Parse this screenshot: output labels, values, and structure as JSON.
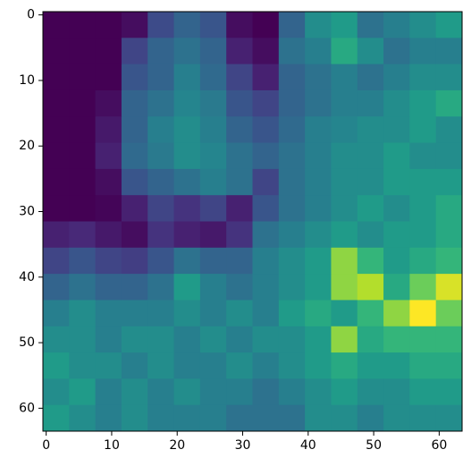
{
  "chart_data": {
    "type": "heatmap",
    "colormap": "viridis",
    "xlim": [
      -0.5,
      63.5
    ],
    "ylim": [
      63.5,
      -0.5
    ],
    "xticks": [
      0,
      10,
      20,
      30,
      40,
      50,
      60
    ],
    "yticks": [
      0,
      10,
      20,
      30,
      40,
      50,
      60
    ],
    "z": [
      [
        0.02,
        0.02,
        0.02,
        0.05,
        0.22,
        0.3,
        0.25,
        0.05,
        0.02,
        0.3,
        0.45,
        0.5,
        0.35,
        0.4,
        0.45,
        0.5
      ],
      [
        0.02,
        0.02,
        0.02,
        0.2,
        0.3,
        0.35,
        0.3,
        0.1,
        0.05,
        0.35,
        0.4,
        0.55,
        0.45,
        0.35,
        0.4,
        0.4
      ],
      [
        0.02,
        0.02,
        0.02,
        0.25,
        0.3,
        0.4,
        0.32,
        0.2,
        0.1,
        0.3,
        0.35,
        0.4,
        0.35,
        0.4,
        0.45,
        0.45
      ],
      [
        0.02,
        0.02,
        0.05,
        0.3,
        0.35,
        0.42,
        0.38,
        0.25,
        0.2,
        0.3,
        0.35,
        0.4,
        0.4,
        0.45,
        0.5,
        0.55
      ],
      [
        0.02,
        0.02,
        0.08,
        0.3,
        0.4,
        0.45,
        0.4,
        0.3,
        0.25,
        0.32,
        0.4,
        0.42,
        0.45,
        0.45,
        0.5,
        0.45
      ],
      [
        0.02,
        0.02,
        0.1,
        0.32,
        0.38,
        0.45,
        0.42,
        0.35,
        0.3,
        0.35,
        0.4,
        0.45,
        0.45,
        0.5,
        0.45,
        0.45
      ],
      [
        0.02,
        0.02,
        0.05,
        0.25,
        0.3,
        0.35,
        0.4,
        0.35,
        0.2,
        0.35,
        0.4,
        0.45,
        0.45,
        0.5,
        0.5,
        0.5
      ],
      [
        0.02,
        0.02,
        0.03,
        0.1,
        0.2,
        0.15,
        0.2,
        0.1,
        0.25,
        0.35,
        0.4,
        0.45,
        0.5,
        0.45,
        0.5,
        0.55
      ],
      [
        0.1,
        0.12,
        0.08,
        0.05,
        0.15,
        0.1,
        0.08,
        0.15,
        0.35,
        0.4,
        0.45,
        0.5,
        0.45,
        0.5,
        0.5,
        0.55
      ],
      [
        0.2,
        0.25,
        0.2,
        0.18,
        0.25,
        0.35,
        0.3,
        0.3,
        0.4,
        0.45,
        0.5,
        0.75,
        0.6,
        0.5,
        0.55,
        0.6
      ],
      [
        0.3,
        0.35,
        0.3,
        0.3,
        0.35,
        0.5,
        0.4,
        0.35,
        0.4,
        0.45,
        0.5,
        0.75,
        0.8,
        0.55,
        0.7,
        0.85
      ],
      [
        0.4,
        0.45,
        0.4,
        0.4,
        0.4,
        0.45,
        0.4,
        0.45,
        0.4,
        0.5,
        0.55,
        0.5,
        0.6,
        0.75,
        0.9,
        0.7
      ],
      [
        0.45,
        0.45,
        0.4,
        0.45,
        0.45,
        0.4,
        0.45,
        0.4,
        0.45,
        0.45,
        0.5,
        0.75,
        0.55,
        0.6,
        0.6,
        0.6
      ],
      [
        0.5,
        0.45,
        0.45,
        0.4,
        0.45,
        0.4,
        0.4,
        0.45,
        0.4,
        0.45,
        0.5,
        0.55,
        0.5,
        0.5,
        0.55,
        0.55
      ],
      [
        0.45,
        0.5,
        0.4,
        0.45,
        0.4,
        0.45,
        0.4,
        0.4,
        0.35,
        0.4,
        0.45,
        0.5,
        0.45,
        0.45,
        0.5,
        0.5
      ],
      [
        0.5,
        0.45,
        0.4,
        0.45,
        0.4,
        0.4,
        0.4,
        0.35,
        0.35,
        0.35,
        0.45,
        0.45,
        0.4,
        0.45,
        0.45,
        0.45
      ]
    ]
  }
}
